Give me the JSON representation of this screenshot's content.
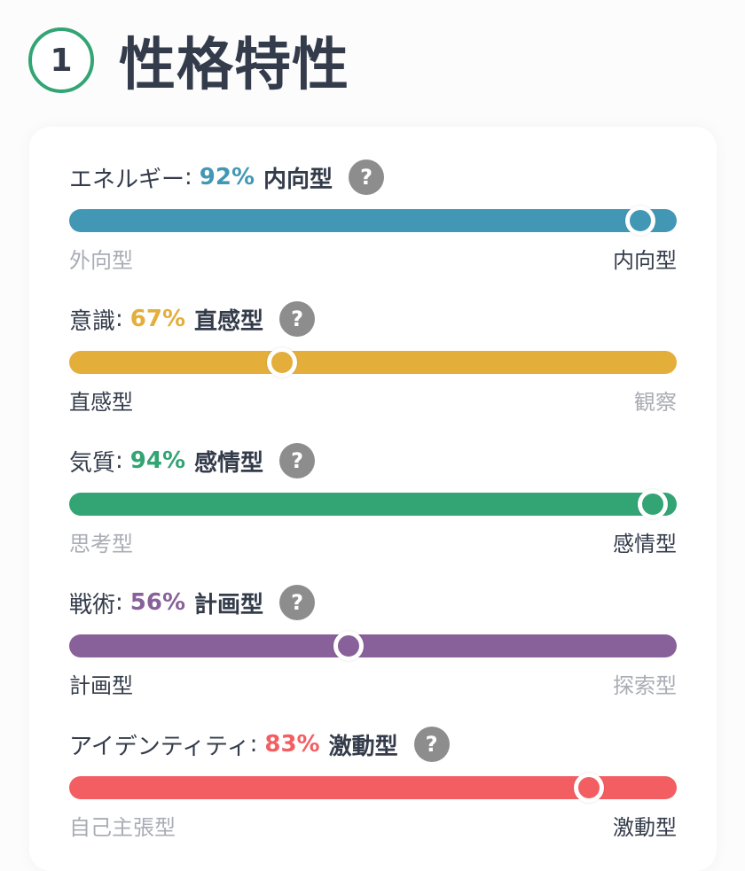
{
  "header": {
    "step": "1",
    "title": "性格特性"
  },
  "traits": [
    {
      "name": "エネルギー",
      "percent": "92%",
      "type": "内向型",
      "color": "#4298b4",
      "value": 0.94,
      "left_label": "外向型",
      "right_label": "内向型",
      "active_side": "right"
    },
    {
      "name": "意識",
      "percent": "67%",
      "type": "直感型",
      "color": "#e4ae3a",
      "value": 0.35,
      "left_label": "直感型",
      "right_label": "観察",
      "active_side": "left"
    },
    {
      "name": "気質",
      "percent": "94%",
      "type": "感情型",
      "color": "#33a474",
      "value": 0.96,
      "left_label": "思考型",
      "right_label": "感情型",
      "active_side": "right"
    },
    {
      "name": "戦術",
      "percent": "56%",
      "type": "計画型",
      "color": "#88619a",
      "value": 0.46,
      "left_label": "計画型",
      "right_label": "探索型",
      "active_side": "left"
    },
    {
      "name": "アイデンティティ",
      "percent": "83%",
      "type": "激動型",
      "color": "#f25e62",
      "value": 0.855,
      "left_label": "自己主張型",
      "right_label": "激動型",
      "active_side": "right"
    }
  ],
  "help_symbol": "?"
}
